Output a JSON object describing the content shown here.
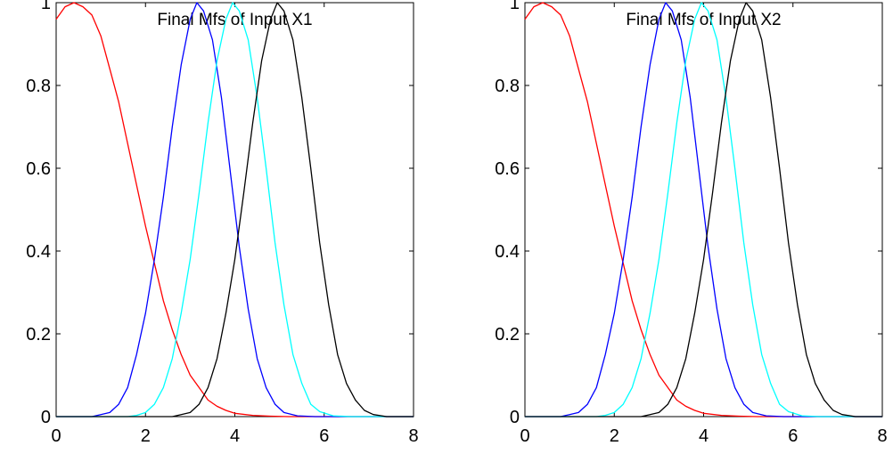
{
  "chart_data": [
    {
      "type": "line",
      "title": "Final Mfs of Input X1",
      "xlabel": "",
      "ylabel": "",
      "xlim": [
        0,
        8
      ],
      "ylim": [
        0,
        1
      ],
      "xticks": [
        "0",
        "2",
        "4",
        "6",
        "8"
      ],
      "yticks": [
        "0",
        "0.2",
        "0.4",
        "0.6",
        "0.8",
        "1"
      ],
      "grid": false,
      "legend": "none",
      "series": [
        {
          "color": "#ff0000",
          "points": [
            [
              0,
              0.96
            ],
            [
              0.2,
              0.99
            ],
            [
              0.4,
              1.0
            ],
            [
              0.6,
              0.99
            ],
            [
              0.8,
              0.97
            ],
            [
              1.0,
              0.92
            ],
            [
              1.2,
              0.84
            ],
            [
              1.4,
              0.76
            ],
            [
              1.6,
              0.66
            ],
            [
              1.8,
              0.56
            ],
            [
              2.0,
              0.46
            ],
            [
              2.2,
              0.37
            ],
            [
              2.4,
              0.28
            ],
            [
              2.6,
              0.21
            ],
            [
              2.8,
              0.15
            ],
            [
              3.0,
              0.1
            ],
            [
              3.2,
              0.07
            ],
            [
              3.4,
              0.04
            ],
            [
              3.6,
              0.025
            ],
            [
              3.8,
              0.015
            ],
            [
              4.0,
              0.008
            ],
            [
              4.4,
              0.003
            ],
            [
              4.8,
              0.001
            ],
            [
              5.2,
              0.0
            ],
            [
              8.0,
              0.0
            ]
          ]
        },
        {
          "color": "#0000ff",
          "points": [
            [
              0,
              0.0
            ],
            [
              0.8,
              0.0
            ],
            [
              1.0,
              0.005
            ],
            [
              1.2,
              0.01
            ],
            [
              1.4,
              0.03
            ],
            [
              1.6,
              0.07
            ],
            [
              1.8,
              0.15
            ],
            [
              2.0,
              0.25
            ],
            [
              2.2,
              0.38
            ],
            [
              2.4,
              0.53
            ],
            [
              2.6,
              0.7
            ],
            [
              2.8,
              0.85
            ],
            [
              3.0,
              0.96
            ],
            [
              3.15,
              1.0
            ],
            [
              3.3,
              0.98
            ],
            [
              3.5,
              0.91
            ],
            [
              3.7,
              0.77
            ],
            [
              3.9,
              0.59
            ],
            [
              4.1,
              0.41
            ],
            [
              4.3,
              0.26
            ],
            [
              4.5,
              0.14
            ],
            [
              4.7,
              0.07
            ],
            [
              4.9,
              0.03
            ],
            [
              5.1,
              0.01
            ],
            [
              5.4,
              0.002
            ],
            [
              5.8,
              0.0
            ],
            [
              8.0,
              0.0
            ]
          ]
        },
        {
          "color": "#00ffff",
          "points": [
            [
              0,
              0.0
            ],
            [
              1.6,
              0.0
            ],
            [
              1.8,
              0.003
            ],
            [
              2.0,
              0.01
            ],
            [
              2.2,
              0.03
            ],
            [
              2.4,
              0.07
            ],
            [
              2.6,
              0.14
            ],
            [
              2.8,
              0.25
            ],
            [
              3.0,
              0.38
            ],
            [
              3.2,
              0.54
            ],
            [
              3.4,
              0.71
            ],
            [
              3.6,
              0.86
            ],
            [
              3.8,
              0.96
            ],
            [
              3.95,
              1.0
            ],
            [
              4.1,
              0.98
            ],
            [
              4.3,
              0.91
            ],
            [
              4.5,
              0.77
            ],
            [
              4.7,
              0.6
            ],
            [
              4.9,
              0.42
            ],
            [
              5.1,
              0.27
            ],
            [
              5.3,
              0.15
            ],
            [
              5.5,
              0.08
            ],
            [
              5.7,
              0.03
            ],
            [
              5.9,
              0.012
            ],
            [
              6.2,
              0.002
            ],
            [
              6.6,
              0.0
            ],
            [
              8.0,
              0.0
            ]
          ]
        },
        {
          "color": "#000000",
          "points": [
            [
              0,
              0.0
            ],
            [
              2.6,
              0.0
            ],
            [
              2.8,
              0.005
            ],
            [
              3.0,
              0.01
            ],
            [
              3.2,
              0.03
            ],
            [
              3.4,
              0.07
            ],
            [
              3.6,
              0.14
            ],
            [
              3.8,
              0.25
            ],
            [
              4.0,
              0.38
            ],
            [
              4.2,
              0.54
            ],
            [
              4.4,
              0.71
            ],
            [
              4.6,
              0.86
            ],
            [
              4.8,
              0.96
            ],
            [
              4.95,
              1.0
            ],
            [
              5.1,
              0.98
            ],
            [
              5.3,
              0.91
            ],
            [
              5.5,
              0.77
            ],
            [
              5.7,
              0.6
            ],
            [
              5.9,
              0.42
            ],
            [
              6.1,
              0.27
            ],
            [
              6.3,
              0.15
            ],
            [
              6.5,
              0.08
            ],
            [
              6.7,
              0.04
            ],
            [
              6.9,
              0.015
            ],
            [
              7.1,
              0.005
            ],
            [
              7.4,
              0.0
            ],
            [
              8.0,
              0.0
            ]
          ]
        }
      ]
    },
    {
      "type": "line",
      "title": "Final Mfs of Input X2",
      "xlabel": "",
      "ylabel": "",
      "xlim": [
        0,
        8
      ],
      "ylim": [
        0,
        1
      ],
      "xticks": [
        "0",
        "2",
        "4",
        "6",
        "8"
      ],
      "yticks": [
        "0",
        "0.2",
        "0.4",
        "0.6",
        "0.8",
        "1"
      ],
      "grid": false,
      "legend": "none",
      "series": [
        {
          "color": "#ff0000",
          "points": [
            [
              0,
              0.96
            ],
            [
              0.2,
              0.99
            ],
            [
              0.4,
              1.0
            ],
            [
              0.6,
              0.99
            ],
            [
              0.8,
              0.97
            ],
            [
              1.0,
              0.92
            ],
            [
              1.2,
              0.84
            ],
            [
              1.4,
              0.76
            ],
            [
              1.6,
              0.66
            ],
            [
              1.8,
              0.56
            ],
            [
              2.0,
              0.46
            ],
            [
              2.2,
              0.37
            ],
            [
              2.4,
              0.28
            ],
            [
              2.6,
              0.21
            ],
            [
              2.8,
              0.15
            ],
            [
              3.0,
              0.1
            ],
            [
              3.2,
              0.07
            ],
            [
              3.4,
              0.04
            ],
            [
              3.6,
              0.025
            ],
            [
              3.8,
              0.015
            ],
            [
              4.0,
              0.008
            ],
            [
              4.4,
              0.003
            ],
            [
              4.8,
              0.001
            ],
            [
              5.2,
              0.0
            ],
            [
              8.0,
              0.0
            ]
          ]
        },
        {
          "color": "#0000ff",
          "points": [
            [
              0,
              0.0
            ],
            [
              0.8,
              0.0
            ],
            [
              1.0,
              0.005
            ],
            [
              1.2,
              0.01
            ],
            [
              1.4,
              0.03
            ],
            [
              1.6,
              0.07
            ],
            [
              1.8,
              0.15
            ],
            [
              2.0,
              0.25
            ],
            [
              2.2,
              0.38
            ],
            [
              2.4,
              0.53
            ],
            [
              2.6,
              0.7
            ],
            [
              2.8,
              0.85
            ],
            [
              3.0,
              0.96
            ],
            [
              3.15,
              1.0
            ],
            [
              3.3,
              0.98
            ],
            [
              3.5,
              0.91
            ],
            [
              3.7,
              0.77
            ],
            [
              3.9,
              0.59
            ],
            [
              4.1,
              0.41
            ],
            [
              4.3,
              0.26
            ],
            [
              4.5,
              0.14
            ],
            [
              4.7,
              0.07
            ],
            [
              4.9,
              0.03
            ],
            [
              5.1,
              0.01
            ],
            [
              5.4,
              0.002
            ],
            [
              5.8,
              0.0
            ],
            [
              8.0,
              0.0
            ]
          ]
        },
        {
          "color": "#00ffff",
          "points": [
            [
              0,
              0.0
            ],
            [
              1.6,
              0.0
            ],
            [
              1.8,
              0.003
            ],
            [
              2.0,
              0.01
            ],
            [
              2.2,
              0.03
            ],
            [
              2.4,
              0.07
            ],
            [
              2.6,
              0.14
            ],
            [
              2.8,
              0.25
            ],
            [
              3.0,
              0.38
            ],
            [
              3.2,
              0.54
            ],
            [
              3.4,
              0.71
            ],
            [
              3.6,
              0.86
            ],
            [
              3.8,
              0.96
            ],
            [
              3.95,
              1.0
            ],
            [
              4.1,
              0.98
            ],
            [
              4.3,
              0.91
            ],
            [
              4.5,
              0.77
            ],
            [
              4.7,
              0.6
            ],
            [
              4.9,
              0.42
            ],
            [
              5.1,
              0.27
            ],
            [
              5.3,
              0.15
            ],
            [
              5.5,
              0.08
            ],
            [
              5.7,
              0.03
            ],
            [
              5.9,
              0.012
            ],
            [
              6.2,
              0.002
            ],
            [
              6.6,
              0.0
            ],
            [
              8.0,
              0.0
            ]
          ]
        },
        {
          "color": "#000000",
          "points": [
            [
              0,
              0.0
            ],
            [
              2.6,
              0.0
            ],
            [
              2.8,
              0.005
            ],
            [
              3.0,
              0.01
            ],
            [
              3.2,
              0.03
            ],
            [
              3.4,
              0.07
            ],
            [
              3.6,
              0.14
            ],
            [
              3.8,
              0.25
            ],
            [
              4.0,
              0.38
            ],
            [
              4.2,
              0.54
            ],
            [
              4.4,
              0.71
            ],
            [
              4.6,
              0.86
            ],
            [
              4.8,
              0.96
            ],
            [
              4.95,
              1.0
            ],
            [
              5.1,
              0.98
            ],
            [
              5.3,
              0.91
            ],
            [
              5.5,
              0.77
            ],
            [
              5.7,
              0.6
            ],
            [
              5.9,
              0.42
            ],
            [
              6.1,
              0.27
            ],
            [
              6.3,
              0.15
            ],
            [
              6.5,
              0.08
            ],
            [
              6.7,
              0.04
            ],
            [
              6.9,
              0.015
            ],
            [
              7.1,
              0.005
            ],
            [
              7.4,
              0.0
            ],
            [
              8.0,
              0.0
            ]
          ]
        }
      ]
    }
  ]
}
